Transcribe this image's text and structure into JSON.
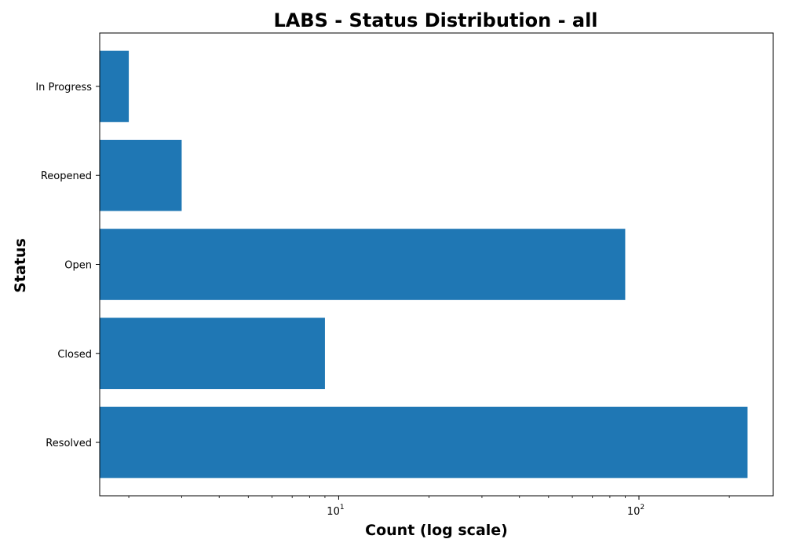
{
  "chart_data": {
    "type": "bar",
    "orientation": "horizontal",
    "title": "LABS - Status Distribution - all",
    "xlabel": "Count (log scale)",
    "ylabel": "Status",
    "x_scale": "log",
    "xlim": [
      1.6,
      280
    ],
    "x_ticks": [
      {
        "value": 10,
        "base": "10",
        "exp": "1"
      },
      {
        "value": 100,
        "base": "10",
        "exp": "2"
      }
    ],
    "categories": [
      "Resolved",
      "Closed",
      "Open",
      "Reopened",
      "In Progress"
    ],
    "values": [
      230,
      9,
      90,
      3,
      2
    ],
    "bar_color": "#1f77b4",
    "grid": false,
    "legend": "none"
  }
}
